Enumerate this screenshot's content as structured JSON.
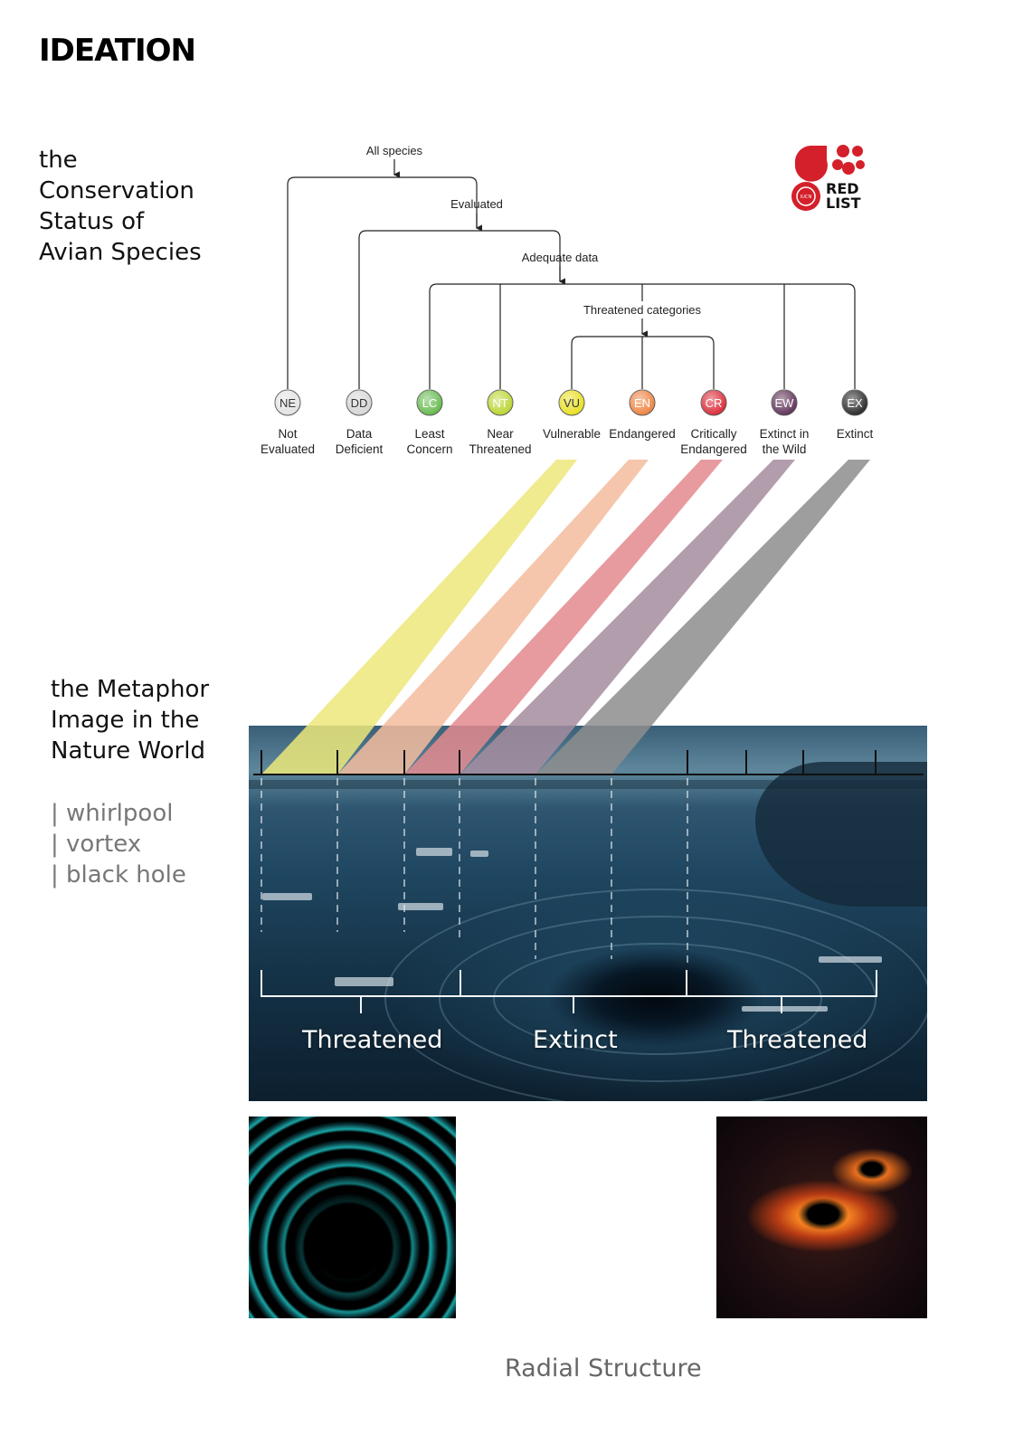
{
  "title": "IDEATION",
  "section_1": {
    "lines": [
      "the",
      "Conservation",
      "Status of",
      "Avian Species"
    ]
  },
  "section_2": {
    "lines": [
      "the Metaphor",
      "Image in the",
      "Nature World"
    ]
  },
  "keywords": [
    "| whirlpool",
    "| vortex",
    "| black hole"
  ],
  "tree": {
    "all_species": "All species",
    "evaluated": "Evaluated",
    "adequate_data": "Adequate data",
    "threatened_categories": "Threatened categories"
  },
  "categories": [
    {
      "code": "NE",
      "label_1": "Not",
      "label_2": "Evaluated",
      "fill": "#e2e2e2",
      "text": "#333333"
    },
    {
      "code": "DD",
      "label_1": "Data",
      "label_2": "Deficient",
      "fill": "#d4d4d4",
      "text": "#333333"
    },
    {
      "code": "LC",
      "label_1": "Least",
      "label_2": "Concern",
      "fill": "#5fb848",
      "text": "#ffffff"
    },
    {
      "code": "NT",
      "label_1": "Near",
      "label_2": "Threatened",
      "fill": "#b8d42a",
      "text": "#ffffff"
    },
    {
      "code": "VU",
      "label_1": "Vulnerable",
      "label_2": "",
      "fill": "#e8de1a",
      "text": "#333333"
    },
    {
      "code": "EN",
      "label_1": "Endangered",
      "label_2": "",
      "fill": "#ee7f3a",
      "text": "#ffffff"
    },
    {
      "code": "CR",
      "label_1": "Critically",
      "label_2": "Endangered",
      "fill": "#d92430",
      "text": "#ffffff"
    },
    {
      "code": "EW",
      "label_1": "Extinct in",
      "label_2": "the Wild",
      "fill": "#5a2a52",
      "text": "#ffffff"
    },
    {
      "code": "EX",
      "label_1": "Extinct",
      "label_2": "",
      "fill": "#222222",
      "text": "#ffffff"
    }
  ],
  "band_colors": [
    "#ece87a",
    "#f3bc9e",
    "#e38a8e",
    "#a48c9f",
    "#8d8d8d"
  ],
  "logo": {
    "line_1": "RED",
    "line_2": "LIST",
    "badge": "IUCN",
    "color": "#d4202a"
  },
  "scale_labels": [
    "Threatened",
    "Extinct",
    "Threatened"
  ],
  "footer": "Radial Structure"
}
